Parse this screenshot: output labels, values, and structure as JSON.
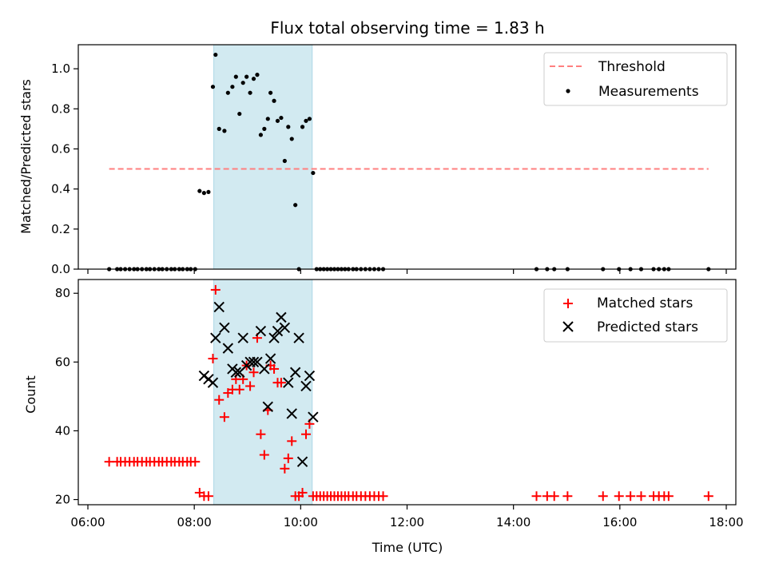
{
  "chart_data": [
    {
      "type": "scatter",
      "title": "Flux total observing time = 1.83 h",
      "ylabel": "Matched/Predicted stars",
      "xlabel": "",
      "xlim": [
        "06:00",
        "18:00"
      ],
      "ylim": [
        0,
        1.12
      ],
      "yticks": [
        "0.0",
        "0.2",
        "0.4",
        "0.6",
        "0.8",
        "1.0"
      ],
      "ytick_values": [
        0,
        0.2,
        0.4,
        0.6,
        0.8,
        1.0
      ],
      "grid": false,
      "legend_position": "top-right",
      "legend": [
        "Threshold",
        "Measurements"
      ],
      "shaded_interval": [
        "08:22",
        "10:13"
      ],
      "threshold": {
        "name": "Threshold",
        "value": 0.5,
        "x_range": [
          "06:24",
          "17:40"
        ],
        "color": "#ff7f7f"
      },
      "series": [
        {
          "name": "Measurements",
          "color": "#000000",
          "x": [
            "06:24",
            "06:33",
            "06:37",
            "06:42",
            "06:47",
            "06:52",
            "06:56",
            "07:01",
            "07:06",
            "07:10",
            "07:15",
            "07:20",
            "07:24",
            "07:29",
            "07:34",
            "07:38",
            "07:43",
            "07:47",
            "07:52",
            "07:56",
            "08:01",
            "08:06",
            "08:11",
            "08:16",
            "08:21",
            "08:24",
            "08:28",
            "08:34",
            "08:38",
            "08:43",
            "08:47",
            "08:51",
            "08:55",
            "08:59",
            "09:03",
            "09:07",
            "09:11",
            "09:15",
            "09:19",
            "09:23",
            "09:26",
            "09:30",
            "09:34",
            "09:38",
            "09:42",
            "09:46",
            "09:50",
            "09:54",
            "09:58",
            "10:02",
            "10:06",
            "10:10",
            "10:14",
            "10:18",
            "10:22",
            "10:26",
            "10:30",
            "10:34",
            "10:38",
            "10:42",
            "10:46",
            "10:50",
            "10:54",
            "10:59",
            "11:03",
            "11:08",
            "11:13",
            "11:18",
            "11:23",
            "11:28",
            "11:33",
            "14:26",
            "14:38",
            "14:46",
            "15:01",
            "15:41",
            "15:59",
            "16:12",
            "16:24",
            "16:38",
            "16:44",
            "16:50",
            "16:55",
            "17:40"
          ],
          "y": [
            0,
            0,
            0,
            0,
            0,
            0,
            0,
            0,
            0,
            0,
            0,
            0,
            0,
            0,
            0,
            0,
            0,
            0,
            0,
            0,
            0,
            0.39,
            0.38,
            0.385,
            0.91,
            1.07,
            0.7,
            0.69,
            0.88,
            0.91,
            0.96,
            0.775,
            0.93,
            0.96,
            0.88,
            0.95,
            0.97,
            0.67,
            0.7,
            0.75,
            0.88,
            0.84,
            0.74,
            0.755,
            0.54,
            0.71,
            0.65,
            0.32,
            0,
            0.71,
            0.74,
            0.75,
            0.48,
            0,
            0,
            0,
            0,
            0,
            0,
            0,
            0,
            0,
            0,
            0,
            0,
            0,
            0,
            0,
            0,
            0,
            0,
            0,
            0,
            0,
            0,
            0,
            0,
            0,
            0,
            0,
            0,
            0,
            0,
            0
          ]
        }
      ]
    },
    {
      "type": "scatter",
      "title": "",
      "ylabel": "Count",
      "xlabel": "Time (UTC)",
      "xlim": [
        "06:00",
        "18:00"
      ],
      "xticks": [
        "06:00",
        "08:00",
        "10:00",
        "12:00",
        "14:00",
        "16:00",
        "18:00"
      ],
      "ylim": [
        18.5,
        84
      ],
      "yticks": [
        "20",
        "40",
        "60",
        "80"
      ],
      "ytick_values": [
        20,
        40,
        60,
        80
      ],
      "grid": false,
      "legend_position": "top-right",
      "legend": [
        "Matched stars",
        "Predicted stars"
      ],
      "shaded_interval": [
        "08:22",
        "10:13"
      ],
      "series": [
        {
          "name": "Matched stars",
          "marker": "+",
          "color": "#ff0000",
          "x": [
            "06:24",
            "06:33",
            "06:37",
            "06:42",
            "06:47",
            "06:52",
            "06:56",
            "07:01",
            "07:06",
            "07:10",
            "07:15",
            "07:20",
            "07:24",
            "07:29",
            "07:34",
            "07:38",
            "07:43",
            "07:47",
            "07:52",
            "07:56",
            "08:01",
            "08:06",
            "08:11",
            "08:16",
            "08:21",
            "08:24",
            "08:28",
            "08:34",
            "08:38",
            "08:43",
            "08:47",
            "08:51",
            "08:55",
            "08:59",
            "09:03",
            "09:07",
            "09:11",
            "09:15",
            "09:19",
            "09:23",
            "09:26",
            "09:30",
            "09:34",
            "09:38",
            "09:42",
            "09:46",
            "09:50",
            "09:54",
            "09:58",
            "10:02",
            "10:06",
            "10:10",
            "10:14",
            "10:18",
            "10:22",
            "10:26",
            "10:30",
            "10:34",
            "10:38",
            "10:42",
            "10:46",
            "10:50",
            "10:54",
            "10:59",
            "11:03",
            "11:08",
            "11:13",
            "11:18",
            "11:23",
            "11:28",
            "11:33",
            "14:26",
            "14:38",
            "14:46",
            "15:01",
            "15:41",
            "15:59",
            "16:12",
            "16:24",
            "16:38",
            "16:44",
            "16:50",
            "16:55",
            "17:40"
          ],
          "y": [
            31,
            31,
            31,
            31,
            31,
            31,
            31,
            31,
            31,
            31,
            31,
            31,
            31,
            31,
            31,
            31,
            31,
            31,
            31,
            31,
            31,
            22,
            21,
            21,
            61,
            81,
            49,
            44,
            51,
            52,
            55,
            52,
            55,
            59,
            53,
            57,
            67,
            39,
            33,
            46,
            59,
            58,
            54,
            54,
            29,
            32,
            37,
            21,
            21,
            22,
            39,
            42,
            21,
            21,
            21,
            21,
            21,
            21,
            21,
            21,
            21,
            21,
            21,
            21,
            21,
            21,
            21,
            21,
            21,
            21,
            21,
            21,
            21,
            21,
            21,
            21,
            21,
            21,
            21,
            21,
            21,
            21,
            21,
            21
          ]
        },
        {
          "name": "Predicted stars",
          "marker": "x",
          "color": "#000000",
          "x": [
            "08:11",
            "08:16",
            "08:21",
            "08:24",
            "08:28",
            "08:34",
            "08:38",
            "08:43",
            "08:47",
            "08:51",
            "08:55",
            "08:59",
            "09:03",
            "09:07",
            "09:11",
            "09:15",
            "09:19",
            "09:23",
            "09:26",
            "09:30",
            "09:34",
            "09:38",
            "09:42",
            "09:46",
            "09:50",
            "09:54",
            "09:58",
            "10:02",
            "10:06",
            "10:10",
            "10:14"
          ],
          "y": [
            56,
            55,
            54,
            67,
            76,
            70,
            64,
            58,
            57,
            57,
            67,
            59,
            60,
            60,
            60,
            69,
            58,
            47,
            61,
            67,
            69,
            73,
            70,
            54,
            45,
            57,
            67,
            31,
            53,
            56,
            44
          ]
        }
      ]
    }
  ]
}
